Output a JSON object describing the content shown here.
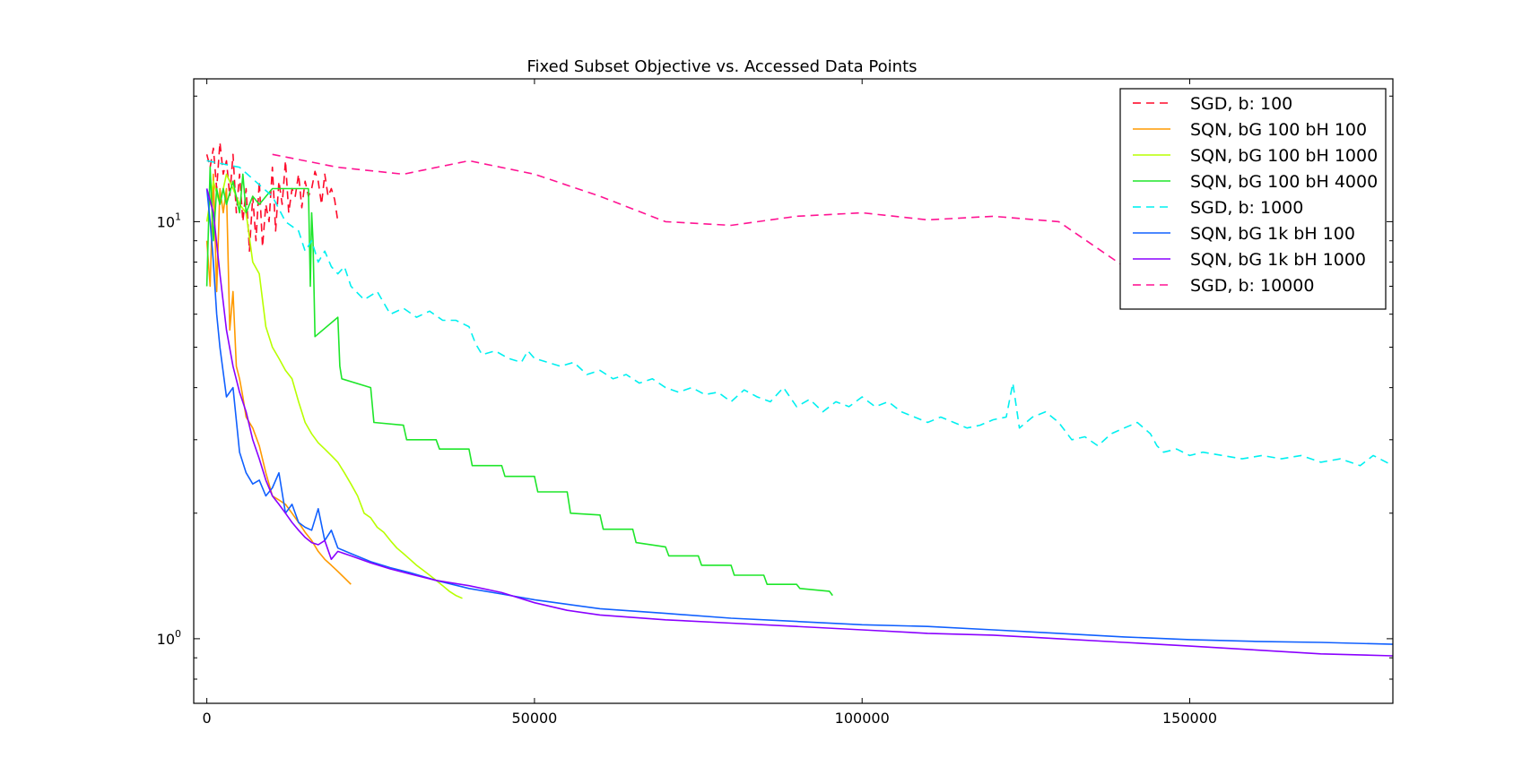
{
  "chart_data": {
    "type": "line",
    "title": "Fixed Subset Objective vs. Accessed Data Points",
    "xlabel": "",
    "ylabel": "",
    "xlim": [
      -2000,
      181000
    ],
    "ylim": [
      0.7,
      22
    ],
    "yscale": "log",
    "grid": false,
    "legend_position": "top-right",
    "x_ticks": [
      0,
      50000,
      100000,
      150000
    ],
    "x_tick_labels": [
      "0",
      "50000",
      "100000",
      "150000"
    ],
    "y_ticks": [
      1,
      10
    ],
    "y_tick_labels": [
      "10^0",
      "10^1"
    ],
    "series": [
      {
        "name": "SGD, b: 100",
        "color": "#ff0a2a",
        "dash": "dashed",
        "x": [
          0,
          500,
          1000,
          1500,
          2000,
          2500,
          3000,
          3500,
          4000,
          4500,
          5000,
          5500,
          6000,
          6500,
          7000,
          7500,
          8000,
          8500,
          9000,
          9500,
          10000,
          10500,
          11000,
          11500,
          12000,
          12500,
          13000,
          13500,
          14000,
          14500,
          15000,
          15500,
          16000,
          16500,
          17000,
          17500,
          18000,
          18500,
          19000,
          19500,
          20000
        ],
        "y": [
          14.5,
          13.5,
          15.0,
          12.0,
          15.5,
          13.0,
          14.0,
          11.5,
          14.5,
          10.5,
          13.0,
          10.0,
          12.0,
          8.5,
          11.5,
          9.0,
          12.5,
          8.7,
          11.0,
          10.0,
          13.5,
          9.5,
          12.5,
          11.0,
          14.0,
          10.5,
          12.0,
          11.5,
          13.0,
          10.8,
          12.5,
          11.5,
          12.0,
          13.2,
          12.5,
          11.0,
          13.0,
          11.5,
          12.0,
          11.3,
          10.0
        ]
      },
      {
        "name": "SQN, bG 100 bH 100",
        "color": "#ff9a00",
        "dash": "solid",
        "x": [
          0,
          500,
          1000,
          1500,
          2000,
          2500,
          3000,
          3500,
          4000,
          4500,
          5000,
          5500,
          6000,
          7000,
          8000,
          9000,
          10000,
          11000,
          12000,
          13000,
          14000,
          15000,
          16000,
          17000,
          18000,
          19000,
          20000,
          21000,
          22000
        ],
        "y": [
          9.0,
          7.0,
          13.0,
          6.8,
          12.0,
          10.5,
          12.0,
          5.5,
          6.8,
          4.5,
          4.2,
          3.8,
          3.4,
          3.2,
          2.9,
          2.5,
          2.2,
          2.15,
          2.1,
          2.0,
          1.9,
          1.8,
          1.72,
          1.62,
          1.55,
          1.5,
          1.45,
          1.4,
          1.35
        ]
      },
      {
        "name": "SQN, bG 100 bH 1000",
        "color": "#b8ff00",
        "dash": "solid",
        "x": [
          0,
          1000,
          2000,
          3000,
          4000,
          5000,
          6000,
          7000,
          8000,
          9000,
          10000,
          11000,
          12000,
          13000,
          14000,
          15000,
          16000,
          17000,
          18000,
          19000,
          20000,
          21000,
          22000,
          23000,
          24000,
          25000,
          26000,
          27000,
          28000,
          29000,
          30000,
          31000,
          32000,
          33000,
          34000,
          35000,
          36000,
          37000,
          38000,
          39000
        ],
        "y": [
          10.0,
          12.5,
          11.0,
          13.0,
          12.0,
          11.0,
          10.5,
          8.0,
          7.5,
          5.6,
          5.0,
          4.7,
          4.4,
          4.2,
          3.7,
          3.3,
          3.1,
          2.95,
          2.85,
          2.75,
          2.65,
          2.5,
          2.35,
          2.2,
          2.0,
          1.95,
          1.85,
          1.8,
          1.72,
          1.65,
          1.6,
          1.55,
          1.5,
          1.46,
          1.42,
          1.38,
          1.34,
          1.3,
          1.27,
          1.25
        ]
      },
      {
        "name": "SQN, bG 100 bH 4000",
        "color": "#1ee62a",
        "dash": "solid",
        "x": [
          0,
          500,
          1000,
          1500,
          2000,
          2500,
          3000,
          4000,
          5000,
          5500,
          6000,
          7000,
          8000,
          10000,
          12000,
          14000,
          15500,
          15800,
          16000,
          16200,
          16500,
          20000,
          20300,
          20600,
          25000,
          25500,
          30000,
          30500,
          35000,
          35500,
          40000,
          40500,
          45000,
          45500,
          50000,
          50500,
          55000,
          55500,
          60000,
          60500,
          65000,
          65500,
          70000,
          70500,
          75000,
          75500,
          80000,
          80500,
          85000,
          85500,
          90000,
          90500,
          95000,
          95500
        ],
        "y": [
          7.0,
          13.5,
          9.0,
          12.0,
          11.0,
          12.0,
          11.0,
          12.5,
          10.5,
          13.0,
          10.5,
          11.5,
          11.0,
          12.0,
          12.0,
          12.0,
          12.0,
          7.0,
          10.5,
          9.0,
          5.3,
          5.9,
          4.5,
          4.2,
          4.0,
          3.3,
          3.25,
          3.0,
          3.0,
          2.85,
          2.85,
          2.6,
          2.6,
          2.45,
          2.45,
          2.25,
          2.25,
          2.0,
          1.98,
          1.83,
          1.83,
          1.7,
          1.66,
          1.58,
          1.58,
          1.5,
          1.5,
          1.42,
          1.42,
          1.35,
          1.35,
          1.32,
          1.3,
          1.27
        ]
      },
      {
        "name": "SGD, b: 1000",
        "color": "#00f0f0",
        "dash": "dashed",
        "x": [
          0,
          5000,
          10000,
          12000,
          14000,
          15000,
          16000,
          17000,
          18000,
          19000,
          20000,
          21000,
          22000,
          24000,
          26000,
          28000,
          30000,
          32000,
          34000,
          36000,
          38000,
          40000,
          41000,
          42000,
          44000,
          46000,
          48000,
          49000,
          50000,
          52000,
          54000,
          56000,
          58000,
          60000,
          62000,
          64000,
          66000,
          68000,
          70000,
          72000,
          74000,
          76000,
          78000,
          80000,
          82000,
          84000,
          86000,
          88000,
          90000,
          92000,
          94000,
          96000,
          98000,
          100000,
          102000,
          104000,
          106000,
          108000,
          110000,
          112000,
          114000,
          116000,
          118000,
          120000,
          122000,
          123000,
          124000,
          126000,
          128000,
          130000,
          132000,
          134000,
          136000,
          138000,
          140000,
          142000,
          144000,
          145000,
          146000,
          148000,
          150000,
          152000,
          155000,
          158000,
          161000,
          164000,
          167000,
          170000,
          173000,
          176000,
          178000,
          181000
        ],
        "y": [
          14.0,
          13.5,
          11.5,
          10.0,
          9.5,
          8.5,
          9.0,
          8.0,
          8.5,
          7.8,
          7.5,
          7.8,
          7.0,
          6.5,
          6.8,
          6.0,
          6.2,
          5.9,
          6.1,
          5.8,
          5.8,
          5.6,
          5.1,
          4.8,
          4.9,
          4.7,
          4.6,
          4.9,
          4.7,
          4.6,
          4.5,
          4.6,
          4.3,
          4.4,
          4.2,
          4.3,
          4.1,
          4.2,
          4.0,
          3.9,
          4.0,
          3.85,
          3.9,
          3.7,
          3.95,
          3.8,
          3.7,
          4.0,
          3.6,
          3.75,
          3.5,
          3.7,
          3.6,
          3.8,
          3.6,
          3.7,
          3.5,
          3.4,
          3.3,
          3.4,
          3.3,
          3.2,
          3.25,
          3.35,
          3.4,
          4.1,
          3.2,
          3.4,
          3.5,
          3.3,
          3.0,
          3.05,
          2.9,
          3.1,
          3.2,
          3.3,
          3.1,
          2.9,
          2.8,
          2.85,
          2.75,
          2.8,
          2.75,
          2.7,
          2.75,
          2.7,
          2.75,
          2.65,
          2.7,
          2.6,
          2.75,
          2.6
        ]
      },
      {
        "name": "SQN, bG 1k bH 100",
        "color": "#1060ff",
        "dash": "solid",
        "x": [
          0,
          500,
          1000,
          1500,
          2000,
          3000,
          4000,
          5000,
          6000,
          7000,
          8000,
          9000,
          10000,
          11000,
          12000,
          13000,
          14000,
          15000,
          16000,
          17000,
          18000,
          19000,
          20000,
          22000,
          25000,
          28000,
          31000,
          35000,
          40000,
          45000,
          50000,
          55000,
          60000,
          70000,
          80000,
          90000,
          100000,
          110000,
          120000,
          130000,
          140000,
          150000,
          160000,
          170000,
          181000
        ],
        "y": [
          12.0,
          10.0,
          8.0,
          6.0,
          5.0,
          3.8,
          4.0,
          2.8,
          2.5,
          2.35,
          2.4,
          2.2,
          2.3,
          2.5,
          2.0,
          2.1,
          1.9,
          1.85,
          1.82,
          2.05,
          1.72,
          1.82,
          1.65,
          1.6,
          1.53,
          1.48,
          1.44,
          1.38,
          1.32,
          1.28,
          1.24,
          1.21,
          1.18,
          1.15,
          1.12,
          1.1,
          1.08,
          1.07,
          1.05,
          1.03,
          1.01,
          0.995,
          0.985,
          0.98,
          0.97
        ]
      },
      {
        "name": "SQN, bG 1k bH 1000",
        "color": "#8a00ff",
        "dash": "solid",
        "x": [
          0,
          1000,
          2000,
          3000,
          4000,
          5000,
          6000,
          7000,
          8000,
          9000,
          10000,
          11000,
          12000,
          13000,
          14000,
          15000,
          16000,
          17000,
          18000,
          19000,
          20000,
          22000,
          25000,
          28000,
          31000,
          35000,
          40000,
          45000,
          50000,
          55000,
          60000,
          70000,
          80000,
          90000,
          100000,
          110000,
          120000,
          130000,
          140000,
          150000,
          160000,
          170000,
          181000
        ],
        "y": [
          12.0,
          10.5,
          7.5,
          5.5,
          4.5,
          3.9,
          3.5,
          3.0,
          2.7,
          2.4,
          2.2,
          2.1,
          2.0,
          1.9,
          1.82,
          1.75,
          1.7,
          1.68,
          1.72,
          1.55,
          1.62,
          1.58,
          1.52,
          1.47,
          1.43,
          1.38,
          1.34,
          1.29,
          1.22,
          1.17,
          1.14,
          1.11,
          1.09,
          1.07,
          1.05,
          1.03,
          1.02,
          1.0,
          0.98,
          0.96,
          0.94,
          0.92,
          0.91
        ]
      },
      {
        "name": "SGD, b: 10000",
        "color": "#ff1493",
        "dash": "dashed",
        "x": [
          10000,
          20000,
          30000,
          40000,
          50000,
          60000,
          70000,
          80000,
          90000,
          100000,
          110000,
          120000,
          130000,
          140000
        ],
        "y": [
          14.5,
          13.5,
          13.0,
          14.0,
          13.0,
          11.5,
          10.0,
          9.8,
          10.3,
          10.5,
          10.1,
          10.3,
          10.0,
          7.8
        ]
      }
    ]
  }
}
